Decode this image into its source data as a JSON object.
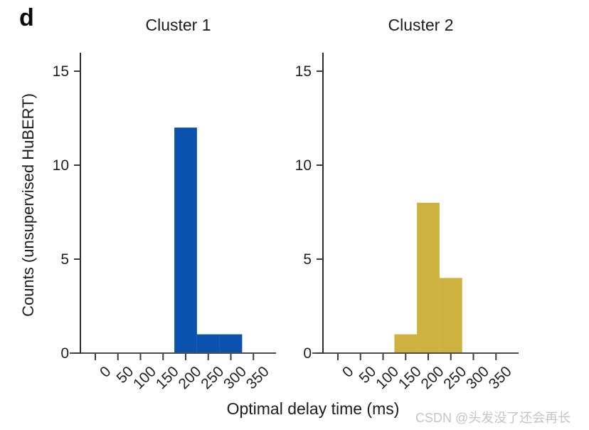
{
  "figure": {
    "panel_label": "d",
    "background_color": "#ffffff",
    "text_color": "#1c1c1e"
  },
  "axes": {
    "xlabel": "Optimal delay time (ms)",
    "ylabel": "Counts (unsupervised HuBERT)",
    "x_ticks": [
      0,
      50,
      100,
      150,
      200,
      250,
      300,
      350
    ],
    "y_ticks": [
      0,
      5,
      10,
      15
    ],
    "ylim": [
      0,
      16
    ],
    "grid": "off",
    "x_tick_rotation_deg": 45
  },
  "chart_data": [
    {
      "type": "bar",
      "subtype": "histogram",
      "title": "Cluster 1",
      "color": "#0b51ae",
      "bin_width": 50,
      "bins": [
        {
          "center": 200,
          "count": 12
        },
        {
          "center": 250,
          "count": 1
        },
        {
          "center": 300,
          "count": 1
        }
      ]
    },
    {
      "type": "bar",
      "subtype": "histogram",
      "title": "Cluster 2",
      "color": "#cdb23f",
      "bin_width": 50,
      "bins": [
        {
          "center": 150,
          "count": 1
        },
        {
          "center": 200,
          "count": 8
        },
        {
          "center": 250,
          "count": 4
        }
      ]
    }
  ],
  "watermark": {
    "text": "CSDN @头发没了还会再长",
    "color": "#c8c4c4"
  }
}
